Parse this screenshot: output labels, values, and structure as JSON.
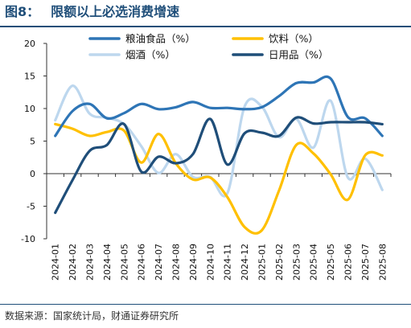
{
  "header": {
    "figure_number": "图8：",
    "title": "限额以上必选消费增速"
  },
  "footer": {
    "source": "数据来源：国家统计局，财通证券研究所"
  },
  "colors": {
    "title": "#1f4e79",
    "rule": "#1f4e79"
  },
  "chart_data": {
    "type": "line",
    "title": "",
    "xlabel": "",
    "ylabel": "",
    "ylim": [
      -10,
      20
    ],
    "yticks": [
      -10,
      -5,
      0,
      5,
      10,
      15,
      20
    ],
    "x": [
      "2024-01",
      "2024-02",
      "2024-03",
      "2024-04",
      "2024-05",
      "2024-06",
      "2024-07",
      "2024-08",
      "2024-09",
      "2024-10",
      "2024-11",
      "2024-12",
      "2025-01",
      "2025-02",
      "2025-03",
      "2025-04",
      "2025-05",
      "2025-06",
      "2025-07",
      "2025-08"
    ],
    "grid": false,
    "legend_position": "top",
    "series": [
      {
        "name": "粮油食品（%）",
        "color": "#2e75b6",
        "values": [
          5.8,
          9.6,
          10.7,
          8.5,
          9.3,
          10.7,
          9.9,
          10.2,
          11.0,
          10.1,
          10.1,
          9.9,
          10.2,
          11.9,
          13.9,
          14.0,
          14.6,
          8.7,
          8.5,
          5.8
        ]
      },
      {
        "name": "饮料（%）",
        "color": "#ffc000",
        "values": [
          7.6,
          6.9,
          5.8,
          6.4,
          6.6,
          1.7,
          6.1,
          1.6,
          -0.9,
          -0.6,
          -3.6,
          -8.2,
          -8.7,
          -2.6,
          4.4,
          3.1,
          -0.1,
          -4.0,
          2.8,
          2.8
        ]
      },
      {
        "name": "烟酒（%）",
        "color": "#bdd7ee",
        "values": [
          8.2,
          13.5,
          9.2,
          8.6,
          7.6,
          4.2,
          0.1,
          3.0,
          -0.5,
          -0.5,
          -3.0,
          10.3,
          10.3,
          5.6,
          8.4,
          4.0,
          11.2,
          -0.6,
          2.3,
          -2.5
        ]
      },
      {
        "name": "日用品（%）",
        "color": "#1f4e79",
        "values": [
          -6.0,
          -1.0,
          3.5,
          4.4,
          7.6,
          0.3,
          2.6,
          1.6,
          3.0,
          8.4,
          1.4,
          6.2,
          6.3,
          5.8,
          8.6,
          7.7,
          7.9,
          7.9,
          7.9,
          7.6
        ]
      }
    ]
  }
}
